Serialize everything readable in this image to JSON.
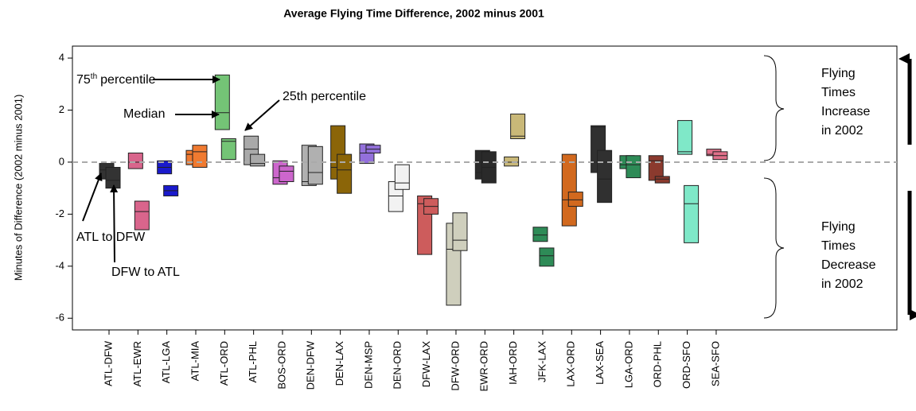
{
  "chart_data": {
    "type": "box",
    "title": "Average Flying Time Difference, 2002 minus 2001",
    "y_label": "Minutes of Difference (2002 minus 2001)",
    "categories": [
      "ATL-DFW",
      "ATL-EWR",
      "ATL-LGA",
      "ATL-MIA",
      "ATL-ORD",
      "ATL-PHL",
      "BOS-ORD",
      "DEN-DFW",
      "DEN-LAX",
      "DEN-MSP",
      "DEN-ORD",
      "DFW-LAX",
      "DFW-ORD",
      "EWR-ORD",
      "IAH-ORD",
      "JFK-LAX",
      "LAX-ORD",
      "LAX-SEA",
      "LGA-ORD",
      "ORD-PHL",
      "ORD-SFO",
      "SEA-SFO"
    ],
    "colors": [
      "#333333",
      "#d9658c",
      "#1a1acc",
      "#f07a30",
      "#74c476",
      "#a9a9a9",
      "#cc66cc",
      "#b0b0b0",
      "#8b6508",
      "#9370db",
      "#f2f2f2",
      "#cd5c5c",
      "#cfcfbd",
      "#2a2a2a",
      "#c9b878",
      "#2e8b57",
      "#d2691e",
      "#303030",
      "#2e8b57",
      "#8b3a2e",
      "#7fe8c8",
      "#e0708a"
    ],
    "boxes": [
      [
        [
          -0.65,
          -0.3,
          -0.05
        ],
        [
          -1.0,
          -0.7,
          -0.2
        ]
      ],
      [
        [
          -0.25,
          0.0,
          0.35
        ],
        [
          -2.6,
          -1.9,
          -1.5
        ]
      ],
      [
        [
          -0.45,
          -0.2,
          0.05
        ],
        [
          -1.3,
          -1.1,
          -0.9
        ]
      ],
      [
        [
          -0.1,
          0.3,
          0.45
        ],
        [
          -0.2,
          0.4,
          0.65
        ]
      ],
      [
        [
          1.25,
          1.9,
          3.35
        ],
        [
          0.1,
          0.8,
          0.9
        ]
      ],
      [
        [
          -0.1,
          0.5,
          1.0
        ],
        [
          -0.15,
          -0.05,
          0.3
        ]
      ],
      [
        [
          -0.85,
          -0.6,
          0.05
        ],
        [
          -0.75,
          -0.35,
          -0.15
        ]
      ],
      [
        [
          -0.9,
          -0.75,
          0.65
        ],
        [
          -0.85,
          -0.4,
          0.6
        ]
      ],
      [
        [
          -0.65,
          -0.2,
          1.4
        ],
        [
          -1.2,
          -0.3,
          0.3
        ]
      ],
      [
        [
          -0.05,
          0.35,
          0.7
        ],
        [
          0.35,
          0.5,
          0.65
        ]
      ],
      [
        [
          -1.9,
          -1.3,
          -0.75
        ],
        [
          -1.05,
          -0.8,
          -0.1
        ]
      ],
      [
        [
          -3.55,
          -1.6,
          -1.3
        ],
        [
          -2.0,
          -1.7,
          -1.4
        ]
      ],
      [
        [
          -5.5,
          -3.35,
          -2.35
        ],
        [
          -3.4,
          -3.0,
          -1.95
        ]
      ],
      [
        [
          -0.65,
          -0.4,
          0.45
        ],
        [
          -0.8,
          -0.2,
          0.4
        ]
      ],
      [
        [
          -0.15,
          0.0,
          0.2
        ],
        [
          0.9,
          1.0,
          1.85
        ]
      ],
      [
        [
          -3.05,
          -2.8,
          -2.5
        ],
        [
          -4.0,
          -3.6,
          -3.3
        ]
      ],
      [
        [
          -2.45,
          -1.45,
          0.3
        ],
        [
          -1.7,
          -1.45,
          -1.15
        ]
      ],
      [
        [
          -0.4,
          1.35,
          1.4
        ],
        [
          -1.55,
          -0.65,
          0.45
        ]
      ],
      [
        [
          -0.25,
          -0.1,
          0.25
        ],
        [
          -0.6,
          -0.1,
          0.25
        ]
      ],
      [
        [
          -0.7,
          0.05,
          0.25
        ],
        [
          -0.8,
          -0.65,
          -0.55
        ]
      ],
      [
        [
          0.3,
          0.4,
          1.6
        ],
        [
          -3.1,
          -1.6,
          -0.9
        ]
      ],
      [
        [
          0.25,
          0.3,
          0.5
        ],
        [
          0.1,
          0.25,
          0.4
        ]
      ]
    ],
    "hline": 0,
    "ylim": [
      -6.45,
      4.46
    ],
    "yticks": [
      -6,
      -4,
      -2,
      0,
      2,
      4
    ],
    "annotations": {
      "q3": [
        "75",
        "th",
        "percentile"
      ],
      "median": "Median",
      "q1": "25th percentile",
      "first": "ATL to DFW",
      "second": "DFW to ATL",
      "increase": [
        "Flying",
        "Times",
        "Increase",
        "in 2002"
      ],
      "decrease": [
        "Flying",
        "Times",
        "Decrease",
        "in 2002"
      ]
    }
  }
}
